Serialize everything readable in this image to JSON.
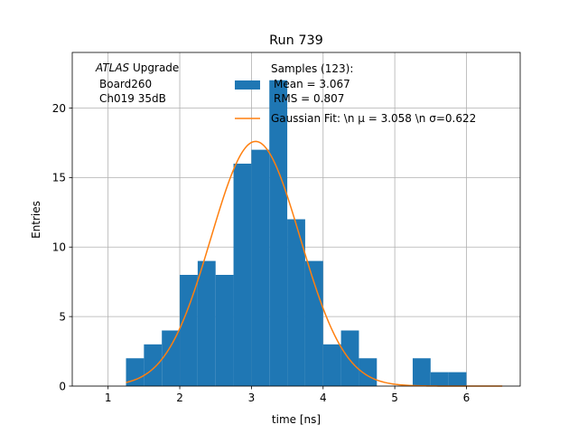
{
  "chart_data": {
    "type": "bar",
    "title": "Run 739",
    "xlabel": "time [ns]",
    "ylabel": "Entries",
    "xlim": [
      0.5,
      6.75
    ],
    "ylim": [
      0,
      24
    ],
    "grid": true,
    "xticks": [
      1,
      2,
      3,
      4,
      5,
      6
    ],
    "yticks": [
      0,
      5,
      10,
      15,
      20
    ],
    "histogram": {
      "bin_edges": [
        1.25,
        1.5,
        1.75,
        2.0,
        2.25,
        2.5,
        2.75,
        3.0,
        3.25,
        3.5,
        3.75,
        4.0,
        4.25,
        4.5,
        4.75,
        5.0,
        5.25,
        5.5,
        5.75,
        6.0
      ],
      "counts": [
        2,
        3,
        4,
        8,
        9,
        8,
        16,
        17,
        22,
        12,
        9,
        3,
        4,
        2,
        0,
        0,
        2,
        1,
        1
      ],
      "color": "#1f77b4"
    },
    "fit": {
      "type": "gaussian",
      "mu": 3.058,
      "sigma": 0.622,
      "amplitude": 17.6,
      "x_range": [
        1.25,
        6.5
      ],
      "color": "#ff7f0e"
    },
    "annotation": {
      "lines": [
        "ATLAS Upgrade",
        "Board260",
        "Ch019 35dB"
      ]
    },
    "legend": {
      "location": "top-right",
      "entries": [
        {
          "kind": "bar",
          "lines": [
            "Samples (123):",
            "Mean = 3.067",
            "RMS = 0.807"
          ],
          "color": "#1f77b4"
        },
        {
          "kind": "line",
          "lines": [
            "Gaussian Fit: \\n μ = 3.058 \\n σ=0.622"
          ],
          "color": "#ff7f0e"
        }
      ]
    }
  }
}
